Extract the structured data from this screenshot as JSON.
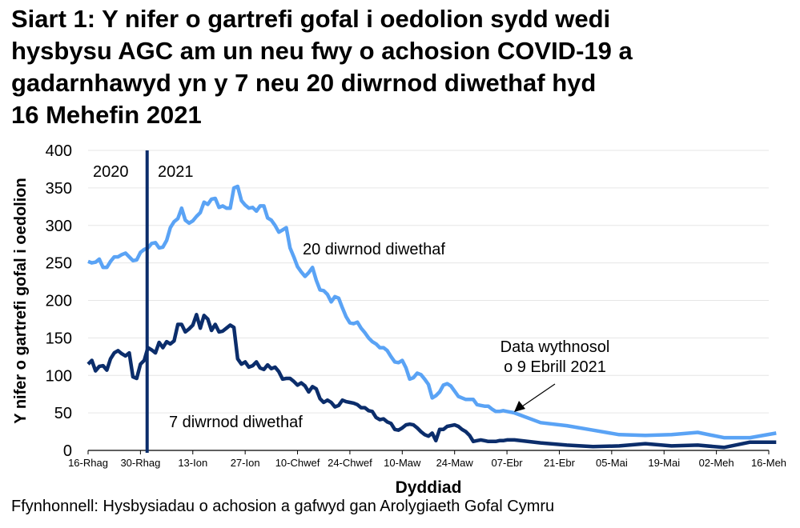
{
  "title": {
    "lines": [
      "Siart 1: Y nifer o gartrefi gofal i oedolion sydd wedi",
      "hysbysu AGC am un neu fwy o achosion COVID-19 a",
      "gadarnhawyd yn y 7 neu 20 diwrnod diwethaf hyd",
      "16 Mehefin 2021"
    ]
  },
  "source": "Ffynhonnell: Hysbysiadau o achosion a gafwyd gan Arolygiaeth Gofal Cymru",
  "colors": {
    "series_20_day": "#5aa3f5",
    "series_7_day": "#0b2d6b",
    "divider": "#0b2d6b",
    "gridline": "#e6e6e6",
    "axis": "#000000"
  },
  "chart_data": {
    "type": "line",
    "title": "Siart 1: Y nifer o gartrefi gofal i oedolion sydd wedi hysbysu AGC am un neu fwy o achosion COVID-19 a gadarnhawyd yn y 7 neu 20 diwrnod diwethaf hyd 16 Mehefin 2021",
    "xlabel": "Dyddiad",
    "ylabel": "Y nifer o gartrefi gofal i oedolion",
    "ylim": [
      0,
      400
    ],
    "yticks": [
      0,
      50,
      100,
      150,
      200,
      250,
      300,
      350,
      400
    ],
    "grid": true,
    "legend_position": "inline labels",
    "xtick_labels": [
      "16-Rhag",
      "30-Rhag",
      "13-Ion",
      "27-Ion",
      "10-Chwef",
      "24-Chwef",
      "10-Maw",
      "24-Maw",
      "07-Ebr",
      "21-Ebr",
      "05-Mai",
      "19-Mai",
      "02-Meh",
      "16-Meh"
    ],
    "x_day_offset_note": "x = days since 16-Rhag 2020",
    "year_labels": [
      {
        "text": "2020",
        "side": "left"
      },
      {
        "text": "2021",
        "side": "right"
      }
    ],
    "year_divider_day": 16,
    "annotations": [
      {
        "text": "20 diwrnod diwethaf",
        "target_series": "20 diwrnod diwethaf"
      },
      {
        "text": "7 diwrnod diwethaf",
        "target_series": "7 diwrnod diwethaf"
      },
      {
        "text": "Data wythnosol\no 9 Ebrill 2021",
        "arrow_to_day": 114
      }
    ],
    "series": [
      {
        "name": "20 diwrnod diwethaf",
        "x": [
          0,
          1,
          2,
          3,
          4,
          5,
          6,
          7,
          8,
          9,
          10,
          11,
          12,
          13,
          14,
          15,
          16,
          17,
          18,
          19,
          20,
          21,
          22,
          23,
          24,
          25,
          26,
          27,
          28,
          29,
          30,
          31,
          32,
          33,
          34,
          35,
          36,
          37,
          38,
          39,
          40,
          41,
          42,
          43,
          44,
          45,
          46,
          47,
          48,
          49,
          50,
          51,
          52,
          53,
          54,
          55,
          56,
          57,
          58,
          59,
          60,
          61,
          62,
          63,
          64,
          65,
          66,
          67,
          68,
          69,
          70,
          71,
          72,
          73,
          74,
          75,
          76,
          77,
          78,
          79,
          80,
          81,
          82,
          83,
          84,
          85,
          86,
          87,
          88,
          89,
          90,
          91,
          92,
          93,
          94,
          95,
          96,
          97,
          98,
          99,
          100,
          101,
          102,
          103,
          104,
          105,
          106,
          107,
          108,
          109,
          110,
          111,
          112,
          113,
          114,
          121,
          128,
          135,
          142,
          149,
          156,
          163,
          170,
          177,
          184
        ],
        "values": [
          252,
          250,
          251,
          255,
          244,
          244,
          252,
          258,
          258,
          261,
          263,
          258,
          253,
          254,
          264,
          268,
          270,
          276,
          277,
          270,
          271,
          280,
          297,
          305,
          309,
          323,
          307,
          303,
          306,
          312,
          317,
          331,
          328,
          335,
          336,
          324,
          326,
          323,
          323,
          350,
          352,
          333,
          327,
          323,
          324,
          319,
          326,
          326,
          310,
          307,
          300,
          291,
          294,
          297,
          270,
          258,
          245,
          238,
          232,
          237,
          244,
          227,
          214,
          213,
          208,
          198,
          205,
          203,
          190,
          178,
          170,
          169,
          171,
          163,
          157,
          150,
          145,
          142,
          137,
          137,
          133,
          125,
          118,
          117,
          120,
          110,
          95,
          97,
          103,
          101,
          95,
          88,
          70,
          73,
          78,
          87,
          89,
          86,
          79,
          72,
          70,
          68,
          68,
          68,
          61,
          60,
          59,
          59,
          55,
          52,
          52,
          53,
          52,
          51,
          50,
          37,
          33,
          27,
          21,
          20,
          21,
          24,
          17,
          17,
          23
        ]
      },
      {
        "name": "7 diwrnod diwethaf",
        "x": [
          0,
          1,
          2,
          3,
          4,
          5,
          6,
          7,
          8,
          9,
          10,
          11,
          12,
          13,
          14,
          15,
          16,
          17,
          18,
          19,
          20,
          21,
          22,
          23,
          24,
          25,
          26,
          27,
          28,
          29,
          30,
          31,
          32,
          33,
          34,
          35,
          36,
          37,
          38,
          39,
          40,
          41,
          42,
          43,
          44,
          45,
          46,
          47,
          48,
          49,
          50,
          51,
          52,
          53,
          54,
          55,
          56,
          57,
          58,
          59,
          60,
          61,
          62,
          63,
          64,
          65,
          66,
          67,
          68,
          69,
          70,
          71,
          72,
          73,
          74,
          75,
          76,
          77,
          78,
          79,
          80,
          81,
          82,
          83,
          84,
          85,
          86,
          87,
          88,
          89,
          90,
          91,
          92,
          93,
          94,
          95,
          96,
          97,
          98,
          99,
          100,
          101,
          102,
          103,
          104,
          105,
          106,
          107,
          108,
          109,
          110,
          111,
          112,
          113,
          114,
          121,
          128,
          135,
          142,
          149,
          156,
          163,
          170,
          177,
          184
        ],
        "values": [
          115,
          120,
          106,
          112,
          113,
          107,
          122,
          130,
          133,
          129,
          126,
          130,
          98,
          96,
          115,
          120,
          137,
          134,
          130,
          144,
          137,
          145,
          142,
          146,
          168,
          168,
          158,
          162,
          167,
          181,
          163,
          180,
          175,
          160,
          168,
          158,
          159,
          163,
          167,
          164,
          122,
          115,
          118,
          111,
          113,
          118,
          110,
          108,
          114,
          109,
          111,
          105,
          95,
          96,
          96,
          92,
          87,
          90,
          86,
          78,
          85,
          82,
          69,
          64,
          67,
          64,
          58,
          60,
          67,
          65,
          64,
          63,
          61,
          57,
          57,
          53,
          52,
          44,
          41,
          42,
          38,
          36,
          28,
          27,
          30,
          34,
          35,
          34,
          30,
          25,
          21,
          19,
          23,
          13,
          28,
          28,
          32,
          33,
          34,
          32,
          28,
          25,
          20,
          12,
          13,
          14,
          13,
          12,
          12,
          12,
          13,
          13,
          14,
          14,
          14,
          10,
          7,
          5,
          6,
          9,
          6,
          7,
          4,
          11,
          11
        ]
      }
    ]
  },
  "axes": {
    "xlabel": "Dyddiad",
    "ylabel": "Y nifer o gartrefi gofal i oedolion",
    "yticks": [
      "0",
      "50",
      "100",
      "150",
      "200",
      "250",
      "300",
      "350",
      "400"
    ],
    "xticks": [
      "16-Rhag",
      "30-Rhag",
      "13-Ion",
      "27-Ion",
      "10-Chwef",
      "24-Chwef",
      "10-Maw",
      "24-Maw",
      "07-Ebr",
      "21-Ebr",
      "05-Mai",
      "19-Mai",
      "02-Meh",
      "16-Meh"
    ]
  },
  "labels": {
    "year_left": "2020",
    "year_right": "2021",
    "series_20": "20 diwrnod diwethaf",
    "series_7": "7 diwrnod diwethaf",
    "annotation_line1": "Data wythnosol",
    "annotation_line2": "o 9 Ebrill 2021"
  }
}
